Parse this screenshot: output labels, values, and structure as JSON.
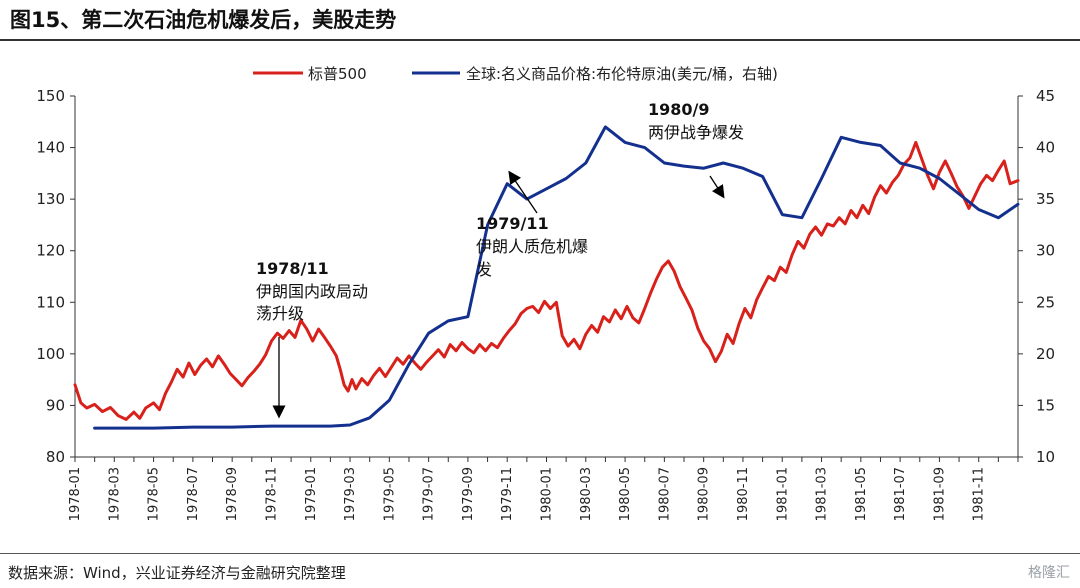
{
  "title": "图15、第二次石油危机爆发后，美股走势",
  "source": "数据来源：Wind，兴业证券经济与金融研究院整理",
  "watermark": "格隆汇",
  "colors": {
    "sp500": "#d9211c",
    "oil": "#14308f",
    "axis": "#333333"
  },
  "chart_data": {
    "type": "line",
    "title": "",
    "legend": [
      "标普500",
      "全球:名义商品价格:布伦特原油(美元/桶，右轴)"
    ],
    "x_ticks": [
      "1978-01",
      "1978-03",
      "1978-05",
      "1978-07",
      "1978-09",
      "1978-11",
      "1979-01",
      "1979-03",
      "1979-05",
      "1979-07",
      "1979-09",
      "1979-11",
      "1980-01",
      "1980-03",
      "1980-05",
      "1980-07",
      "1980-09",
      "1980-11",
      "1981-01",
      "1981-03",
      "1981-05",
      "1981-07",
      "1981-09",
      "1981-11"
    ],
    "y_left": {
      "min": 80,
      "max": 150,
      "ticks": [
        80,
        90,
        100,
        110,
        120,
        130,
        140,
        150
      ]
    },
    "y_right": {
      "min": 10,
      "max": 45,
      "ticks": [
        10,
        15,
        20,
        25,
        30,
        35,
        40,
        45
      ]
    },
    "x_range": [
      0,
      48
    ],
    "series": [
      {
        "name": "标普500",
        "axis": "left",
        "points": [
          [
            0,
            94
          ],
          [
            0.3,
            90.5
          ],
          [
            0.6,
            89.5
          ],
          [
            1.0,
            90.2
          ],
          [
            1.4,
            88.8
          ],
          [
            1.8,
            89.6
          ],
          [
            2.2,
            88.0
          ],
          [
            2.6,
            87.3
          ],
          [
            3.0,
            88.7
          ],
          [
            3.3,
            87.5
          ],
          [
            3.6,
            89.5
          ],
          [
            4.0,
            90.5
          ],
          [
            4.3,
            89.2
          ],
          [
            4.6,
            92.3
          ],
          [
            4.9,
            94.5
          ],
          [
            5.2,
            97.0
          ],
          [
            5.5,
            95.5
          ],
          [
            5.8,
            98.2
          ],
          [
            6.1,
            96.0
          ],
          [
            6.4,
            97.8
          ],
          [
            6.7,
            99.0
          ],
          [
            7.0,
            97.5
          ],
          [
            7.3,
            99.6
          ],
          [
            7.6,
            98.0
          ],
          [
            7.9,
            96.2
          ],
          [
            8.2,
            95.0
          ],
          [
            8.5,
            93.8
          ],
          [
            8.8,
            95.4
          ],
          [
            9.1,
            96.6
          ],
          [
            9.4,
            98.0
          ],
          [
            9.7,
            99.8
          ],
          [
            10.0,
            102.5
          ],
          [
            10.3,
            104.0
          ],
          [
            10.6,
            103.0
          ],
          [
            10.9,
            104.5
          ],
          [
            11.2,
            103.2
          ],
          [
            11.5,
            106.5
          ],
          [
            11.8,
            104.8
          ],
          [
            12.1,
            102.5
          ],
          [
            12.4,
            104.8
          ],
          [
            12.7,
            103.2
          ],
          [
            13.0,
            101.5
          ],
          [
            13.3,
            99.6
          ],
          [
            13.5,
            97.0
          ],
          [
            13.7,
            94.0
          ],
          [
            13.9,
            92.8
          ],
          [
            14.1,
            95.0
          ],
          [
            14.3,
            93.2
          ],
          [
            14.6,
            95.2
          ],
          [
            14.9,
            94.0
          ],
          [
            15.2,
            95.8
          ],
          [
            15.5,
            97.2
          ],
          [
            15.8,
            95.6
          ],
          [
            16.1,
            97.4
          ],
          [
            16.4,
            99.2
          ],
          [
            16.7,
            98.0
          ],
          [
            17.0,
            99.6
          ],
          [
            17.3,
            98.2
          ],
          [
            17.6,
            97.0
          ],
          [
            17.9,
            98.4
          ],
          [
            18.2,
            99.6
          ],
          [
            18.5,
            100.8
          ],
          [
            18.8,
            99.4
          ],
          [
            19.1,
            101.8
          ],
          [
            19.4,
            100.6
          ],
          [
            19.7,
            102.2
          ],
          [
            20.0,
            101.0
          ],
          [
            20.3,
            100.2
          ],
          [
            20.6,
            101.8
          ],
          [
            20.9,
            100.6
          ],
          [
            21.2,
            102.0
          ],
          [
            21.5,
            101.2
          ],
          [
            21.8,
            103.0
          ],
          [
            22.1,
            104.5
          ],
          [
            22.4,
            105.8
          ],
          [
            22.7,
            107.8
          ],
          [
            23.0,
            108.8
          ],
          [
            23.3,
            109.2
          ],
          [
            23.6,
            108.0
          ],
          [
            23.9,
            110.2
          ],
          [
            24.2,
            108.8
          ],
          [
            24.5,
            110.0
          ],
          [
            24.8,
            103.5
          ],
          [
            25.1,
            101.5
          ],
          [
            25.4,
            102.8
          ],
          [
            25.7,
            101.0
          ],
          [
            26.0,
            103.8
          ],
          [
            26.3,
            105.5
          ],
          [
            26.6,
            104.2
          ],
          [
            26.9,
            107.2
          ],
          [
            27.2,
            106.2
          ],
          [
            27.5,
            108.5
          ],
          [
            27.8,
            106.8
          ],
          [
            28.1,
            109.2
          ],
          [
            28.4,
            107.0
          ],
          [
            28.7,
            106.0
          ],
          [
            29.0,
            108.8
          ],
          [
            29.3,
            111.8
          ],
          [
            29.6,
            114.5
          ],
          [
            29.9,
            116.8
          ],
          [
            30.2,
            118.0
          ],
          [
            30.5,
            116.0
          ],
          [
            30.8,
            113.0
          ],
          [
            31.1,
            110.8
          ],
          [
            31.4,
            108.5
          ],
          [
            31.7,
            105.0
          ],
          [
            32.0,
            102.5
          ],
          [
            32.3,
            101.0
          ],
          [
            32.6,
            98.5
          ],
          [
            32.9,
            100.5
          ],
          [
            33.2,
            103.8
          ],
          [
            33.5,
            102.0
          ],
          [
            33.8,
            105.8
          ],
          [
            34.1,
            108.8
          ],
          [
            34.4,
            107.0
          ],
          [
            34.7,
            110.5
          ],
          [
            35.0,
            112.8
          ],
          [
            35.3,
            115.0
          ],
          [
            35.6,
            114.2
          ],
          [
            35.9,
            116.8
          ],
          [
            36.2,
            115.8
          ],
          [
            36.5,
            119.2
          ],
          [
            36.8,
            121.8
          ],
          [
            37.1,
            120.5
          ],
          [
            37.4,
            123.2
          ],
          [
            37.7,
            124.6
          ],
          [
            38.0,
            123.0
          ],
          [
            38.3,
            125.2
          ],
          [
            38.6,
            124.8
          ],
          [
            38.9,
            126.4
          ],
          [
            39.2,
            125.2
          ],
          [
            39.5,
            127.8
          ],
          [
            39.8,
            126.4
          ],
          [
            40.1,
            128.8
          ],
          [
            40.4,
            127.2
          ],
          [
            40.7,
            130.4
          ],
          [
            41.0,
            132.6
          ],
          [
            41.3,
            131.2
          ],
          [
            41.6,
            133.2
          ],
          [
            41.9,
            134.6
          ],
          [
            42.2,
            136.8
          ],
          [
            42.5,
            138.0
          ],
          [
            42.8,
            141.0
          ],
          [
            43.1,
            137.8
          ],
          [
            43.4,
            134.6
          ],
          [
            43.7,
            132.0
          ],
          [
            44.0,
            135.2
          ],
          [
            44.3,
            137.4
          ],
          [
            44.6,
            135.0
          ],
          [
            44.9,
            132.4
          ],
          [
            45.2,
            130.6
          ],
          [
            45.5,
            128.2
          ],
          [
            45.8,
            130.6
          ],
          [
            46.1,
            133.0
          ],
          [
            46.4,
            134.6
          ],
          [
            46.7,
            133.6
          ],
          [
            47.0,
            135.6
          ],
          [
            47.3,
            137.4
          ],
          [
            47.6,
            133.0
          ],
          [
            48,
            133.6
          ]
        ]
      },
      {
        "name": "全球:名义商品价格:布伦特原油(美元/桶，右轴)",
        "axis": "right",
        "points": [
          [
            1,
            12.8
          ],
          [
            4,
            12.8
          ],
          [
            6,
            12.9
          ],
          [
            8,
            12.9
          ],
          [
            10,
            13.0
          ],
          [
            12,
            13.0
          ],
          [
            13,
            13.0
          ],
          [
            14,
            13.1
          ],
          [
            15,
            13.8
          ],
          [
            16,
            15.5
          ],
          [
            17,
            19.0
          ],
          [
            18,
            22.0
          ],
          [
            19,
            23.2
          ],
          [
            20,
            23.6
          ],
          [
            21,
            32.5
          ],
          [
            22,
            36.5
          ],
          [
            23,
            35.0
          ],
          [
            24,
            36.0
          ],
          [
            25,
            37.0
          ],
          [
            26,
            38.5
          ],
          [
            27,
            42.0
          ],
          [
            28,
            40.5
          ],
          [
            29,
            40.0
          ],
          [
            30,
            38.5
          ],
          [
            31,
            38.2
          ],
          [
            32,
            38.0
          ],
          [
            33,
            38.5
          ],
          [
            34,
            38.0
          ],
          [
            35,
            37.2
          ],
          [
            36,
            33.5
          ],
          [
            37,
            33.2
          ],
          [
            38,
            37.0
          ],
          [
            39,
            41.0
          ],
          [
            40,
            40.5
          ],
          [
            41,
            40.2
          ],
          [
            42,
            38.5
          ],
          [
            43,
            38.0
          ],
          [
            44,
            37.0
          ],
          [
            45,
            35.5
          ],
          [
            46,
            34.0
          ],
          [
            47,
            33.2
          ],
          [
            48,
            34.5
          ]
        ]
      }
    ],
    "annotations": [
      {
        "label": "1978/11",
        "text": [
          "伊朗国内政局动",
          "荡升级"
        ]
      },
      {
        "label": "1979/11",
        "text": [
          "伊朗人质危机爆",
          "发"
        ]
      },
      {
        "label": "1980/9",
        "text": [
          "两伊战争爆发"
        ]
      }
    ]
  }
}
